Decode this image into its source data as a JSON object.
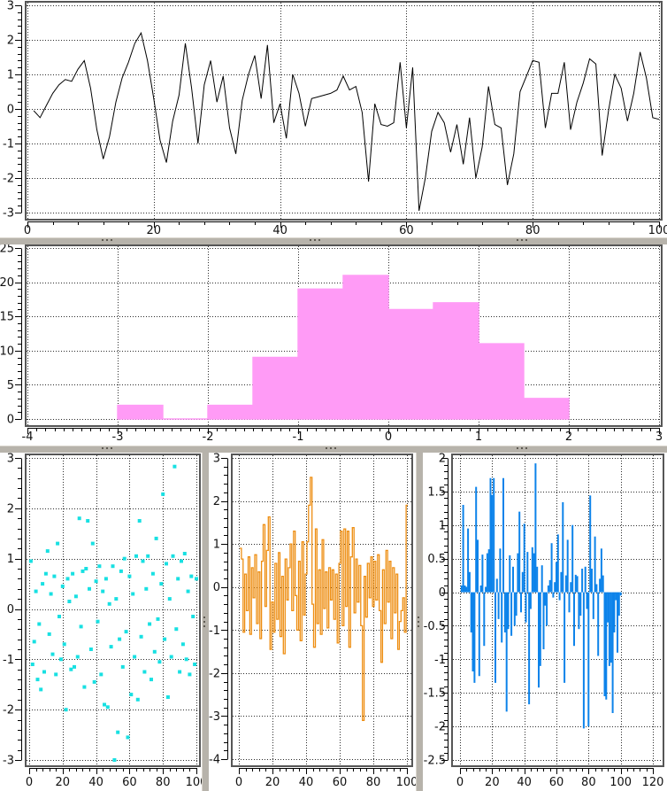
{
  "ui": {
    "background": "#ffffff",
    "splitter_color": "#b7b3ab",
    "grid_color": "#2b2b2b",
    "frame_color": "#565656",
    "tick_color": "#000000",
    "label_color": "#111111"
  },
  "chart_data": [
    {
      "id": "line",
      "type": "line",
      "title": "",
      "xlabel": "",
      "ylabel": "",
      "color": "#000000",
      "grid": true,
      "axes": {
        "x": {
          "min": 0,
          "max": 100,
          "ticks": [
            0,
            20,
            40,
            60,
            80,
            100
          ],
          "labels": [
            "0",
            "20",
            "40",
            "60",
            "80",
            "100"
          ],
          "minor_step": 4
        },
        "y": {
          "min": -3,
          "max": 3,
          "ticks": [
            -3,
            -2,
            -1,
            0,
            1,
            2,
            3
          ],
          "labels": [
            "-3",
            "-2",
            "-1",
            "0",
            "1",
            "2",
            "3"
          ],
          "minor_step": 0.2
        }
      },
      "x_start": 1,
      "x_step": 1,
      "values": [
        -0.05,
        -0.25,
        0.1,
        0.45,
        0.7,
        0.85,
        0.8,
        1.15,
        1.4,
        0.6,
        -0.6,
        -1.45,
        -0.8,
        0.2,
        0.9,
        1.35,
        1.9,
        2.2,
        1.4,
        0.3,
        -0.9,
        -1.55,
        -0.35,
        0.4,
        1.9,
        0.6,
        -1.0,
        0.7,
        1.4,
        0.2,
        0.95,
        -0.55,
        -1.3,
        0.25,
        1.0,
        1.55,
        0.3,
        1.85,
        -0.4,
        0.15,
        -0.85,
        1.0,
        0.45,
        -0.5,
        0.3,
        0.35,
        0.4,
        0.45,
        0.55,
        0.95,
        0.55,
        0.65,
        -0.1,
        -2.1,
        0.15,
        -0.45,
        -0.5,
        -0.4,
        1.35,
        -0.55,
        1.2,
        -2.95,
        -2.0,
        -0.65,
        -0.1,
        -0.4,
        -1.25,
        -0.45,
        -1.6,
        -0.25,
        -2.0,
        -1.1,
        0.65,
        -0.45,
        -0.55,
        -2.2,
        -1.3,
        0.5,
        0.95,
        1.4,
        1.35,
        -0.55,
        0.45,
        0.45,
        1.35,
        -0.6,
        0.2,
        0.75,
        1.45,
        1.3,
        -1.35,
        -0.05,
        1.0,
        0.6,
        -0.35,
        0.45,
        1.65,
        0.9,
        -0.25,
        -0.3
      ]
    },
    {
      "id": "histogram",
      "type": "histogram",
      "title": "",
      "xlabel": "",
      "ylabel": "",
      "color": "#ff9bf6",
      "grid": true,
      "axes": {
        "x": {
          "min": -4,
          "max": 3,
          "ticks": [
            -4,
            -3,
            -2,
            -1,
            0,
            1,
            2,
            3
          ],
          "labels": [
            "-4",
            "-3",
            "-2",
            "-1",
            "0",
            "1",
            "2",
            "3"
          ],
          "minor_step": 0.1
        },
        "y": {
          "min": 0,
          "max": 25,
          "ticks": [
            0,
            5,
            10,
            15,
            20,
            25
          ],
          "labels": [
            "0",
            "5",
            "10",
            "15",
            "20",
            "25"
          ],
          "minor_step": 1
        }
      },
      "bin_start": -3,
      "bin_width": 0.5,
      "counts": [
        2,
        0,
        2,
        9,
        19,
        21,
        16,
        17,
        11,
        3
      ]
    },
    {
      "id": "scatter",
      "type": "scatter",
      "title": "",
      "xlabel": "",
      "ylabel": "",
      "color": "#18e0e2",
      "grid": true,
      "marker_size": 4,
      "axes": {
        "x": {
          "min": 0,
          "max": 100,
          "ticks": [
            0,
            20,
            40,
            60,
            80,
            100
          ],
          "labels": [
            "0",
            "20",
            "40",
            "60",
            "80",
            "100"
          ],
          "minor_step": 4
        },
        "y": {
          "min": -3,
          "max": 3,
          "ticks": [
            -3,
            -2,
            -1,
            0,
            1,
            2,
            3
          ],
          "labels": [
            "-3",
            "-2",
            "-1",
            "0",
            "1",
            "2",
            "3"
          ],
          "minor_step": 0.2
        }
      },
      "x_start": 1,
      "x_step": 1,
      "values": [
        0.95,
        -1.1,
        -0.65,
        0.35,
        -1.4,
        -0.3,
        -1.6,
        0.5,
        -1.25,
        0.7,
        1.15,
        -0.5,
        0.3,
        -0.9,
        0.65,
        -1.3,
        1.3,
        -0.15,
        -1.0,
        0.45,
        -0.7,
        -2.0,
        0.6,
        0.15,
        -1.2,
        0.7,
        -1.15,
        0.25,
        -0.95,
        1.8,
        -0.35,
        0.75,
        -1.55,
        0.8,
        1.75,
        0.4,
        -0.8,
        1.3,
        -1.45,
        0.55,
        -0.25,
        0.85,
        -1.3,
        0.35,
        -1.9,
        0.6,
        -1.95,
        0.1,
        -0.75,
        0.85,
        -3.0,
        0.2,
        -2.45,
        -0.6,
        0.75,
        -1.15,
        1.0,
        -0.45,
        -2.55,
        0.65,
        -1.7,
        0.3,
        -0.95,
        1.05,
        -1.8,
        1.75,
        -0.55,
        0.95,
        -1.25,
        0.4,
        1.05,
        -0.3,
        -1.4,
        0.7,
        -0.85,
        1.4,
        -0.2,
        -1.05,
        0.5,
        2.28,
        -0.6,
        0.9,
        -1.75,
        0.2,
        -0.95,
        1.05,
        2.83,
        -0.4,
        0.6,
        -1.25,
        0.95,
        -0.7,
        1.1,
        -1.0,
        0.35,
        -1.3,
        0.65,
        -0.15,
        -1.1,
        0.6
      ]
    },
    {
      "id": "steps",
      "type": "steps",
      "title": "",
      "xlabel": "",
      "ylabel": "",
      "color": "#ee8e12",
      "grid": true,
      "axes": {
        "x": {
          "min": 0,
          "max": 100,
          "ticks": [
            0,
            20,
            40,
            60,
            80,
            100
          ],
          "labels": [
            "0",
            "20",
            "40",
            "60",
            "80",
            "100"
          ],
          "minor_step": 4
        },
        "y": {
          "min": -4,
          "max": 3,
          "ticks": [
            -4,
            -3,
            -2,
            -1,
            0,
            1,
            2,
            3
          ],
          "labels": [
            "-4",
            "-3",
            "-2",
            "-1",
            "0",
            "1",
            "2",
            "3"
          ],
          "minor_step": 0.2
        }
      },
      "x_start": 1,
      "x_step": 1,
      "values": [
        0.9,
        0.65,
        -1.05,
        0.3,
        -0.55,
        0.7,
        -1.1,
        0.45,
        -0.25,
        0.75,
        -0.85,
        0.35,
        -1.2,
        0.6,
        1.45,
        -0.45,
        0.85,
        1.63,
        -1.45,
        -0.35,
        -1.05,
        0.55,
        -0.75,
        0.8,
        -1.15,
        0.25,
        -1.55,
        0.65,
        -0.3,
        0.45,
        1.0,
        -0.55,
        1.3,
        -0.2,
        -1.0,
        0.6,
        -1.25,
        1.05,
        -0.65,
        0.3,
        1.05,
        1.9,
        2.55,
        -0.4,
        -1.4,
        1.35,
        -0.85,
        0.4,
        -1.1,
        1.1,
        -0.5,
        0.35,
        -0.95,
        0.45,
        -0.3,
        0.4,
        -0.75,
        0.3,
        -1.3,
        0.55,
        1.3,
        -0.9,
        1.35,
        -0.45,
        1.3,
        -1.4,
        0.7,
        1.38,
        -0.6,
        0.65,
        -0.35,
        0.5,
        -0.9,
        -3.1,
        0.25,
        -0.7,
        0.55,
        -0.25,
        0.7,
        -0.45,
        0.6,
        -0.3,
        0.75,
        -0.55,
        -1.75,
        0.4,
        -0.85,
        0.85,
        -0.35,
        0.6,
        -1.2,
        0.45,
        -0.6,
        0.3,
        -1.45,
        -0.8,
        -0.55,
        -0.25,
        -1.05,
        1.9
      ]
    },
    {
      "id": "impulses",
      "type": "impulses",
      "title": "",
      "xlabel": "",
      "ylabel": "",
      "color": "#0d83ea",
      "grid": true,
      "axes": {
        "x": {
          "min": 0,
          "max": 120,
          "ticks": [
            0,
            20,
            40,
            60,
            80,
            100,
            120
          ],
          "labels": [
            "0",
            "20",
            "40",
            "60",
            "80",
            "100",
            "120"
          ],
          "minor_step": 4
        },
        "y": {
          "min": -2.5,
          "max": 2,
          "ticks": [
            -2.5,
            -2,
            -1.5,
            -1,
            -0.5,
            0,
            0.5,
            1,
            1.5,
            2
          ],
          "labels": [
            "-2.5",
            "-2",
            "-1.5",
            "-1",
            "-0.5",
            "0",
            "0.5",
            "1",
            "1.5",
            "2"
          ],
          "minor_step": 0.1
        }
      },
      "x_start": 1,
      "x_step": 1,
      "values": [
        0.1,
        1.3,
        0.1,
        0.08,
        0.95,
        0.3,
        -0.6,
        -1.18,
        -1.35,
        1.57,
        0.78,
        -1.25,
        0.1,
        0.56,
        -0.8,
        0.08,
        0.58,
        0.64,
        1.7,
        1.45,
        1.7,
        -1.35,
        0.2,
        -0.4,
        0.65,
        -0.75,
        1.7,
        -0.6,
        -1.78,
        -0.55,
        0.55,
        -0.65,
        0.38,
        -0.5,
        -0.35,
        0.58,
        1.2,
        -0.3,
        0.3,
        1.02,
        -0.45,
        0.6,
        -1.67,
        -0.25,
        0.67,
        0.58,
        1.92,
        0.38,
        -1.42,
        -1.1,
        0.4,
        -0.85,
        -0.2,
        -0.5,
        0.1,
        0.18,
        0.73,
        -0.08,
        0.15,
        0.45,
        0.86,
        -0.12,
        0.3,
        1.34,
        -1.35,
        0.25,
        0.78,
        -0.3,
        0.15,
        1.0,
        -0.8,
        0.26,
        0.24,
        -0.55,
        -0.35,
        0.35,
        -2.03,
        0.38,
        -0.25,
        -2.0,
        1.44,
        0.35,
        -0.4,
        0.83,
        0.12,
        -0.95,
        0.2,
        0.65,
        0.25,
        -1.55,
        -1.6,
        -0.45,
        -1.1,
        -1.05,
        -1.8,
        -0.6,
        -0.12,
        -0.9,
        -0.35,
        -0.05
      ]
    }
  ]
}
